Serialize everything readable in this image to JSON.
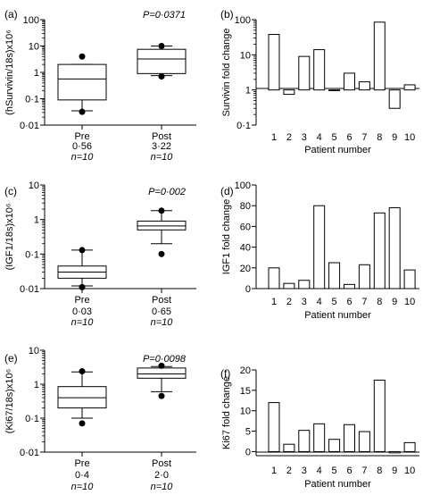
{
  "chart_data": [
    {
      "panel": "(a)",
      "type": "box",
      "scale": "log",
      "ylabel": "(hSurvivin/18s)x10⁶",
      "ylim": [
        0.01,
        100
      ],
      "yticks": [
        "0·01",
        "0·1",
        "1",
        "10",
        "100"
      ],
      "pvalue": "P=0·0371",
      "groups": [
        {
          "name": "Pre",
          "median_label": "0·56",
          "n_label": "n=10",
          "whisker_low": 0.035,
          "q1": 0.09,
          "median": 0.56,
          "q3": 2.0,
          "whisker_high": 2.0,
          "outliers": [
            4.0,
            0.032
          ]
        },
        {
          "name": "Post",
          "median_label": "3·22",
          "n_label": "n=10",
          "whisker_low": 0.75,
          "q1": 0.9,
          "median": 3.22,
          "q3": 7.5,
          "whisker_high": 10,
          "outliers": [
            10,
            0.7
          ]
        }
      ]
    },
    {
      "panel": "(b)",
      "type": "bar",
      "scale": "log",
      "baseline": 1,
      "ylabel": "Survivin fold change",
      "xlabel": "Patient number",
      "ylim": [
        0.1,
        100
      ],
      "yticks": [
        "0·1",
        "1",
        "10",
        "100"
      ],
      "categories": [
        "1",
        "2",
        "3",
        "4",
        "5",
        "6",
        "7",
        "8",
        "9",
        "10"
      ],
      "values": [
        38,
        0.75,
        9,
        14,
        1,
        3,
        1.7,
        85,
        0.3,
        1.4
      ]
    },
    {
      "panel": "(c)",
      "type": "box",
      "scale": "log",
      "ylabel": "(IGF1/18s)x10⁶",
      "ylim": [
        0.01,
        10
      ],
      "yticks": [
        "0·01",
        "0·1",
        "1",
        "10"
      ],
      "pvalue": "P=0·002",
      "groups": [
        {
          "name": "Pre",
          "median_label": "0·03",
          "n_label": "n=10",
          "whisker_low": 0.012,
          "q1": 0.02,
          "median": 0.03,
          "q3": 0.045,
          "whisker_high": 0.13,
          "outliers": [
            0.13,
            0.011
          ]
        },
        {
          "name": "Post",
          "median_label": "0·65",
          "n_label": "n=10",
          "whisker_low": 0.2,
          "q1": 0.5,
          "median": 0.65,
          "q3": 0.9,
          "whisker_high": 1.8,
          "outliers": [
            1.8,
            0.1
          ]
        }
      ]
    },
    {
      "panel": "(d)",
      "type": "bar",
      "scale": "linear",
      "ylabel": "IGF1 fold change",
      "xlabel": "Patient number",
      "ylim": [
        0,
        100
      ],
      "yticks": [
        "0",
        "20",
        "40",
        "60",
        "80",
        "100"
      ],
      "categories": [
        "1",
        "2",
        "3",
        "4",
        "5",
        "6",
        "7",
        "8",
        "9",
        "10"
      ],
      "values": [
        20,
        5,
        8,
        80,
        25,
        4,
        23,
        73,
        78,
        18
      ]
    },
    {
      "panel": "(e)",
      "type": "box",
      "scale": "log",
      "ylabel": "(Ki67/18s)x10⁶",
      "ylim": [
        0.01,
        10
      ],
      "yticks": [
        "0·01",
        "0·1",
        "1",
        "10"
      ],
      "pvalue": "P=0·0098",
      "groups": [
        {
          "name": "Pre",
          "median_label": "0·4",
          "n_label": "n=10",
          "whisker_low": 0.1,
          "q1": 0.2,
          "median": 0.4,
          "q3": 0.85,
          "whisker_high": 2.3,
          "outliers": [
            2.4,
            0.07
          ]
        },
        {
          "name": "Post",
          "median_label": "2·0",
          "n_label": "n=10",
          "whisker_low": 0.6,
          "q1": 1.5,
          "median": 2.0,
          "q3": 3.0,
          "whisker_high": 3.3,
          "outliers": [
            3.5,
            0.45
          ]
        }
      ]
    },
    {
      "panel": "(f)",
      "type": "bar",
      "scale": "linear",
      "ylabel": "Ki67 fold change",
      "xlabel": "Patient number",
      "ylim": [
        -1,
        20
      ],
      "yticks": [
        "0",
        "5",
        "10",
        "15",
        "20"
      ],
      "categories": [
        "1",
        "2",
        "3",
        "4",
        "5",
        "6",
        "7",
        "8",
        "9",
        "10"
      ],
      "values": [
        12,
        1.8,
        5.2,
        6.8,
        3,
        6.6,
        4.9,
        17.5,
        -0.3,
        2.2
      ]
    }
  ]
}
